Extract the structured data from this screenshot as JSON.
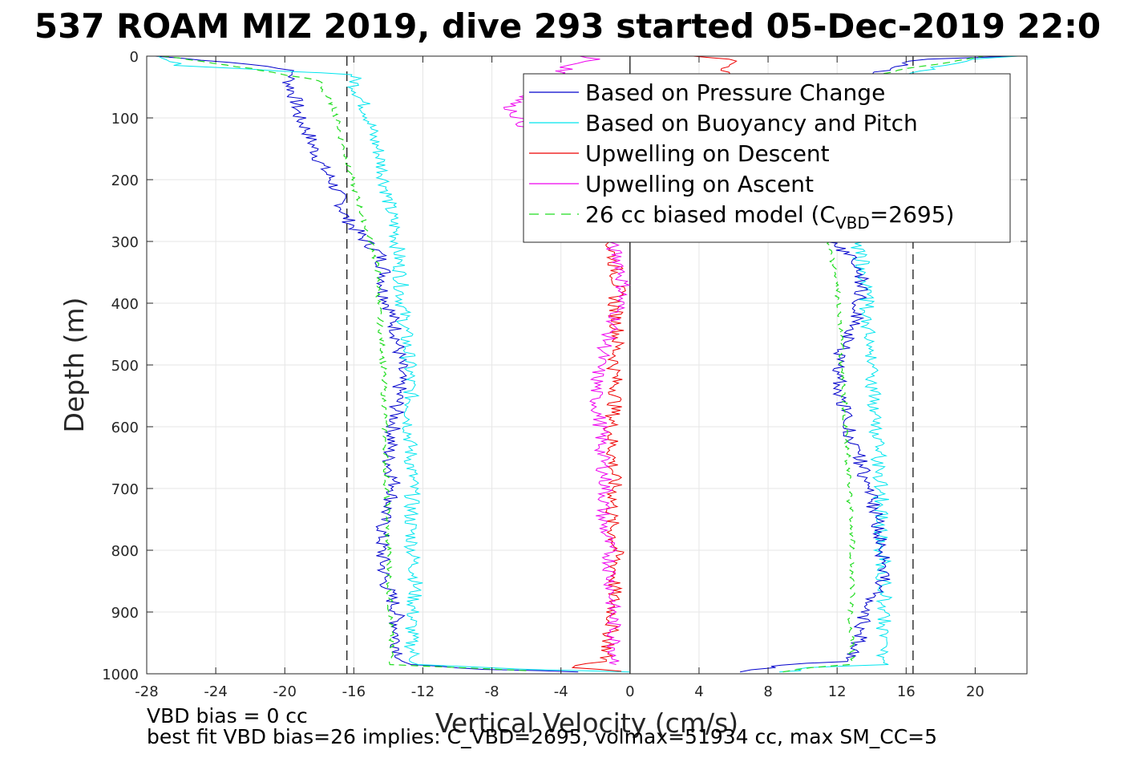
{
  "chart_data": {
    "type": "line",
    "title": "537 ROAM MIZ 2019, dive 293 started 05-Dec-2019 22:0",
    "xlabel": "Vertical Velocity (cm/s)",
    "ylabel": "Depth (m)",
    "xlim": [
      -28,
      23
    ],
    "ylim": [
      0,
      1000
    ],
    "y_reversed": true,
    "grid": true,
    "xticks": [
      -28,
      -24,
      -20,
      -16,
      -12,
      -8,
      -4,
      0,
      4,
      8,
      12,
      16,
      20
    ],
    "yticks": [
      0,
      100,
      200,
      300,
      400,
      500,
      600,
      700,
      800,
      900,
      1000
    ],
    "vertical_lines": [
      {
        "x": -16.4,
        "style": "dashed",
        "color": "#000000"
      },
      {
        "x": 0,
        "style": "solid",
        "color": "#000000"
      },
      {
        "x": 16.4,
        "style": "dashed",
        "color": "#000000"
      }
    ],
    "legend": {
      "placement": "top-right",
      "entries": [
        {
          "label": "Based on Pressure Change",
          "color": "#0000cc",
          "style": "solid"
        },
        {
          "label": "Based on Buoyancy and Pitch",
          "color": "#00e5ee",
          "style": "solid"
        },
        {
          "label": "Upwelling on Descent",
          "color": "#ee0000",
          "style": "solid"
        },
        {
          "label": "Upwelling on Ascent",
          "color": "#ee00ee",
          "style": "solid"
        },
        {
          "label": "26 cc biased model (C",
          "label_sub": "VBD",
          "label_end": "=2695)",
          "color": "#22dd22",
          "style": "dashed"
        }
      ]
    },
    "series": [
      {
        "color": "#0000cc",
        "width": 1,
        "dash": "",
        "depth": [
          0,
          10,
          20,
          30,
          40,
          60,
          80,
          100,
          120,
          150,
          180,
          200,
          230,
          260,
          280,
          300,
          320,
          350,
          380,
          400,
          450,
          500,
          550,
          600,
          650,
          700,
          750,
          800,
          850,
          900,
          950,
          985,
          993,
          997
        ],
        "x": [
          -27.5,
          -23,
          -20,
          -19.5,
          -19.8,
          -19.5,
          -19.3,
          -19.2,
          -18.7,
          -18.3,
          -17.8,
          -17.3,
          -16.8,
          -16.5,
          -15.9,
          -15.3,
          -14.5,
          -14.2,
          -14.3,
          -14,
          -13.5,
          -13.3,
          -13.4,
          -13.7,
          -14,
          -13.6,
          -14.3,
          -14.4,
          -14.2,
          -13.5,
          -13.5,
          -13.1,
          -8,
          -3
        ]
      },
      {
        "color": "#00e5ee",
        "width": 1,
        "dash": "",
        "depth": [
          0,
          15,
          30,
          50,
          80,
          100,
          130,
          150,
          200,
          250,
          280,
          300,
          330,
          350,
          400,
          450,
          500,
          550,
          600,
          650,
          700,
          750,
          800,
          850,
          900,
          950,
          985,
          993,
          997
        ],
        "x": [
          -27.8,
          -26,
          -16,
          -15.9,
          -15.4,
          -15.1,
          -14.9,
          -14.6,
          -14.2,
          -13.9,
          -13.6,
          -13.5,
          -13.4,
          -13.3,
          -13.2,
          -13,
          -12.8,
          -12.7,
          -12.8,
          -12.7,
          -12.6,
          -12.7,
          -12.6,
          -12.4,
          -12.6,
          -12.7,
          -12.4,
          -6,
          0
        ]
      },
      {
        "color": "#22dd22",
        "width": 1.2,
        "dash": "9 6",
        "depth": [
          0,
          20,
          40,
          60,
          80,
          100,
          150,
          200,
          250,
          300,
          350,
          400,
          450,
          500,
          600,
          700,
          800,
          900,
          985,
          995
        ],
        "x": [
          -27,
          -22,
          -18,
          -17.7,
          -17.2,
          -17,
          -16.6,
          -16.1,
          -15.6,
          -15,
          -14.6,
          -14.6,
          -14.4,
          -14.3,
          -14.2,
          -14.1,
          -14,
          -13.9,
          -13.8,
          -6
        ]
      },
      {
        "color": "#ee0000",
        "width": 1,
        "dash": "",
        "depth": [
          0,
          5,
          300,
          320,
          350,
          380,
          400,
          450,
          500,
          550,
          600,
          650,
          700,
          750,
          800,
          850,
          900,
          950,
          980,
          990,
          996
        ],
        "x": [
          4,
          6,
          -1.2,
          -1,
          -0.8,
          -0.7,
          -0.9,
          -0.7,
          -0.9,
          -0.8,
          -1.1,
          -1,
          -0.9,
          -1.1,
          -0.8,
          -0.9,
          -1,
          -1.2,
          -1.5,
          -3.5,
          -0.5
        ]
      },
      {
        "color": "#ee00ee",
        "width": 1,
        "dash": "",
        "depth": [
          0,
          5,
          15,
          60,
          80,
          300,
          340,
          380,
          420,
          460,
          500,
          550,
          600,
          650,
          700,
          750,
          800,
          850,
          900,
          950,
          985
        ],
        "x": [
          -3,
          -2,
          -3.5,
          -5.5,
          -7,
          -1.2,
          -0.5,
          -0.4,
          -0.8,
          -1.3,
          -1.8,
          -2,
          -1.7,
          -1.6,
          -1.4,
          -1.6,
          -1.2,
          -1.1,
          -1,
          -0.9,
          -0.8
        ]
      },
      {
        "color": "#00e5ee",
        "width": 1,
        "dash": "",
        "depth": [
          997,
          995,
          990,
          985,
          950,
          900,
          850,
          800,
          750,
          700,
          650,
          600,
          550,
          500,
          450,
          400,
          350,
          330,
          310,
          300,
          50,
          30,
          15,
          5,
          0
        ],
        "x": [
          9,
          9.5,
          10.5,
          14.7,
          14.6,
          14.8,
          14.7,
          14.6,
          14.5,
          14.6,
          14.4,
          14.3,
          14.1,
          13.9,
          13.8,
          13.7,
          13.6,
          13.4,
          13.2,
          13.4,
          13.5,
          16,
          18,
          20,
          22.5
        ]
      },
      {
        "color": "#0000cc",
        "width": 1,
        "dash": "",
        "depth": [
          997,
          990,
          986,
          980,
          950,
          930,
          900,
          870,
          850,
          800,
          750,
          700,
          650,
          600,
          550,
          500,
          460,
          430,
          400,
          360,
          320,
          300,
          40,
          20,
          5,
          0
        ],
        "x": [
          6,
          8,
          8.5,
          12.5,
          13.2,
          13.4,
          13.6,
          14.2,
          14.7,
          14.6,
          14.3,
          13.8,
          13.3,
          12.6,
          12.2,
          12.0,
          12.5,
          13.0,
          13.3,
          13.4,
          12.6,
          11.5,
          13.5,
          15,
          17,
          22
        ]
      },
      {
        "color": "#22dd22",
        "width": 1.2,
        "dash": "9 6",
        "depth": [
          997,
          990,
          985,
          950,
          900,
          850,
          800,
          750,
          700,
          650,
          600,
          550,
          500,
          450,
          400,
          350,
          300,
          40,
          20,
          10,
          0
        ],
        "x": [
          9,
          10.5,
          12.9,
          12.8,
          12.8,
          12.9,
          12.9,
          12.8,
          12.7,
          12.6,
          12.5,
          12.4,
          12.3,
          12.2,
          12.1,
          11.9,
          11.5,
          13,
          16,
          18.5,
          20.5
        ]
      }
    ]
  },
  "footer": {
    "line1": "VBD bias = 0 cc",
    "line2": "best fit VBD bias=26 implies: C_VBD=2695, volmax=51934 cc, max SM_CC=5"
  }
}
